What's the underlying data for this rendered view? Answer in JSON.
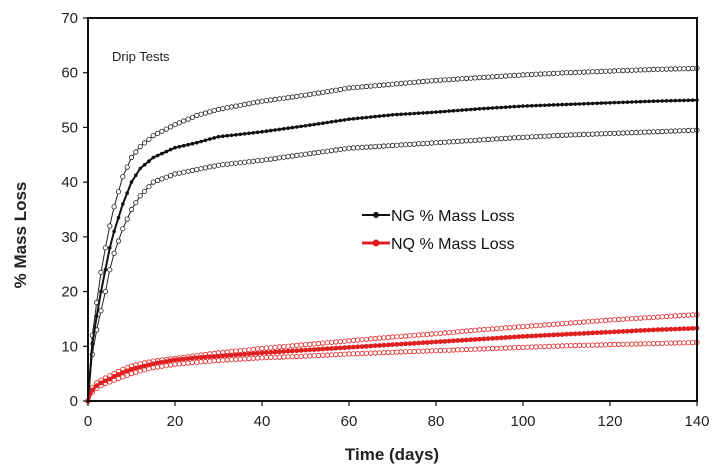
{
  "chart_data": {
    "type": "line",
    "annotation": "Drip Tests",
    "xlabel": "Time (days)",
    "ylabel": "% Mass Loss",
    "xlim": [
      0,
      140
    ],
    "ylim": [
      0,
      70
    ],
    "xticks": [
      0,
      20,
      40,
      60,
      80,
      100,
      120,
      140
    ],
    "yticks": [
      0,
      10,
      20,
      30,
      40,
      50,
      60,
      70
    ],
    "grid": false,
    "legend_position": "center-right",
    "x": [
      0,
      1,
      2,
      3,
      4,
      5,
      6,
      8,
      10,
      12,
      15,
      20,
      25,
      30,
      40,
      50,
      60,
      70,
      80,
      90,
      100,
      110,
      120,
      130,
      140
    ],
    "series": [
      {
        "name": "NG % Mass Loss",
        "color": "#111111",
        "values": [
          0,
          10.5,
          15.5,
          20,
          24,
          28,
          31,
          36,
          40,
          42.5,
          44.5,
          46.3,
          47.2,
          48.3,
          49.2,
          50.3,
          51.5,
          52.3,
          52.8,
          53.4,
          53.9,
          54.2,
          54.5,
          54.8,
          55
        ]
      },
      {
        "name": "NQ % Mass Loss",
        "color": "#e02020",
        "values": [
          0,
          2,
          2.8,
          3.3,
          3.7,
          4,
          4.5,
          5.2,
          5.8,
          6.2,
          6.8,
          7.5,
          7.9,
          8.2,
          8.8,
          9.3,
          9.8,
          10.3,
          10.8,
          11.3,
          11.8,
          12.2,
          12.6,
          13,
          13.3
        ]
      }
    ],
    "bands": [
      {
        "series": "NG % Mass Loss",
        "color": "#222222",
        "upper": [
          0,
          12,
          18,
          23.5,
          28,
          32,
          35.5,
          41,
          44.5,
          46.5,
          48.5,
          50.5,
          52.2,
          53.3,
          54.8,
          55.9,
          57.2,
          57.9,
          58.6,
          59.1,
          59.6,
          60,
          60.3,
          60.6,
          60.8
        ],
        "lower": [
          0,
          8.5,
          13,
          16.5,
          20,
          24,
          27,
          31.5,
          35,
          37.5,
          40,
          41.5,
          42.3,
          43.1,
          44,
          45.1,
          46.2,
          46.7,
          47.2,
          47.7,
          48.2,
          48.6,
          48.9,
          49.2,
          49.5
        ]
      },
      {
        "series": "NQ % Mass Loss",
        "color": "#e02020",
        "upper": [
          0,
          2.5,
          3.3,
          3.8,
          4.2,
          4.6,
          5,
          5.8,
          6.4,
          6.8,
          7.3,
          7.8,
          8.3,
          8.8,
          9.6,
          10.3,
          11,
          11.7,
          12.3,
          13,
          13.6,
          14.2,
          14.8,
          15.3,
          15.8
        ],
        "lower": [
          0,
          1.6,
          2.3,
          2.8,
          3.2,
          3.5,
          3.8,
          4.4,
          5,
          5.5,
          6.1,
          6.7,
          7.1,
          7.4,
          7.9,
          8.2,
          8.6,
          8.9,
          9.2,
          9.5,
          9.8,
          10.1,
          10.3,
          10.5,
          10.7
        ]
      }
    ]
  }
}
